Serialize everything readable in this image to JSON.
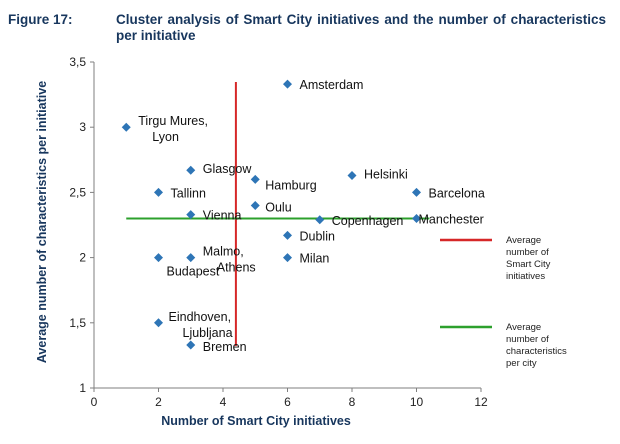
{
  "figure": {
    "label": "Figure 17:",
    "title": "Cluster analysis of Smart City initiatives and the number of characteristics per initiative"
  },
  "chart_data": {
    "type": "scatter",
    "xlabel": "Number of Smart City initiatives",
    "ylabel": "Average number of characteristics per initiative",
    "xlim": [
      0,
      12
    ],
    "ylim": [
      1,
      3.5
    ],
    "x_ticks": [
      "0",
      "2",
      "4",
      "6",
      "8",
      "10",
      "12"
    ],
    "y_ticks": [
      "1",
      "1,5",
      "2",
      "2,5",
      "3",
      "3,5"
    ],
    "marker_color": "#2e75b6",
    "points": [
      {
        "label": "Amsterdam",
        "x": 6,
        "y": 3.33
      },
      {
        "label": "Tirgu Mures,",
        "label2": "Lyon",
        "x": 1,
        "y": 3.0
      },
      {
        "label": "Glasgow",
        "x": 3,
        "y": 2.67
      },
      {
        "label": "Hamburg",
        "x": 5,
        "y": 2.6
      },
      {
        "label": "Helsinki",
        "x": 8,
        "y": 2.63
      },
      {
        "label": "Tallinn",
        "x": 2,
        "y": 2.5
      },
      {
        "label": "Barcelona",
        "x": 10,
        "y": 2.5
      },
      {
        "label": "Oulu",
        "x": 5,
        "y": 2.4
      },
      {
        "label": "Vienna",
        "x": 3,
        "y": 2.33
      },
      {
        "label": "Copenhagen",
        "x": 7,
        "y": 2.29
      },
      {
        "label": "Manchester",
        "x": 10,
        "y": 2.3
      },
      {
        "label": "Dublin",
        "x": 6,
        "y": 2.17
      },
      {
        "label": "Malmo,",
        "label2": "Athens",
        "x": 3,
        "y": 2.0
      },
      {
        "label": "Budapest",
        "x": 2,
        "y": 2.0
      },
      {
        "label": "Milan",
        "x": 6,
        "y": 2.0
      },
      {
        "label": "Eindhoven,",
        "label2": "Ljubljana",
        "x": 2,
        "y": 1.5
      },
      {
        "label": "Bremen",
        "x": 3,
        "y": 1.33
      }
    ],
    "reference_lines": [
      {
        "orientation": "vertical",
        "value": 4.4,
        "color": "#d62728",
        "legend": [
          "Average",
          "number of",
          "Smart City",
          "initiatives"
        ]
      },
      {
        "orientation": "horizontal",
        "value": 2.3,
        "color": "#2ca02c",
        "legend": [
          "Average",
          "number of",
          "characteristics",
          "per city"
        ]
      }
    ],
    "legend_position": "right"
  }
}
